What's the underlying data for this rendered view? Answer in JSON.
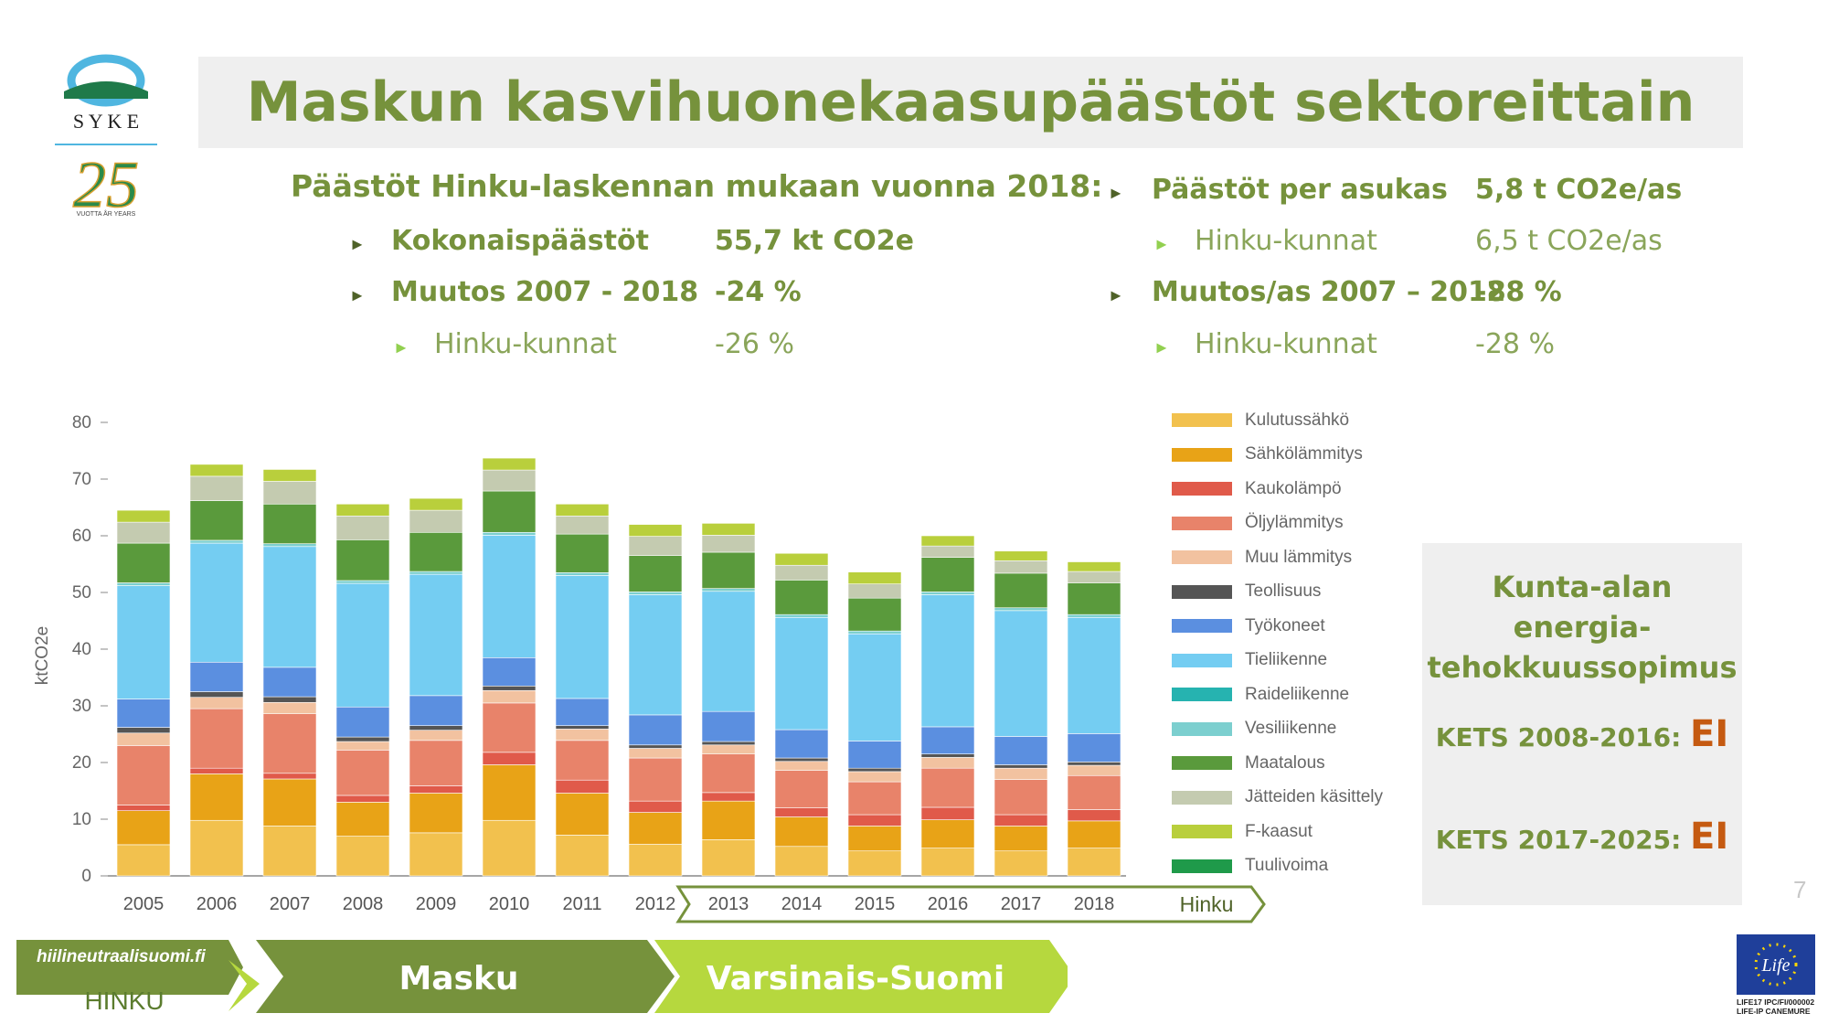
{
  "title": "Maskun kasvihuonekaasupäästöt sektoreittain",
  "logo": {
    "syke_text": "S Y K E",
    "anniversary_number": "25",
    "anniversary_text": "VUOTTA ÅR YEARS"
  },
  "stats_left": {
    "heading": "Päästöt Hinku-laskennan mukaan vuonna 2018:",
    "rows": [
      {
        "label": "Kokonaispäästöt",
        "value": "55,7 kt CO2e"
      },
      {
        "label": "Muutos 2007 - 2018",
        "value": "-24 %"
      },
      {
        "label": "Hinku-kunnat",
        "value": "-26 %"
      }
    ]
  },
  "stats_right": {
    "rows": [
      {
        "label": "Päästöt per asukas",
        "value": "5,8 t CO2e/as"
      },
      {
        "label": "Hinku-kunnat",
        "value": "6,5 t CO2e/as"
      },
      {
        "label": "Muutos/as 2007 – 2018",
        "value": "-28 %"
      },
      {
        "label": "Hinku-kunnat",
        "value": "-28 %"
      }
    ]
  },
  "kets": {
    "heading_line1": "Kunta-alan energia-",
    "heading_line2": "tehokkuussopimus",
    "row1_label": "KETS 2008-2016:",
    "row1_value": "EI",
    "row2_label": "KETS 2017-2025:",
    "row2_value": "EI"
  },
  "footer": {
    "site": "hiilineutraalisuomi.fi",
    "hinku": "HINKU",
    "arrow1": "Masku",
    "arrow2": "Varsinais-Suomi",
    "page_number": "7",
    "eu_text1": "LIFE17 IPC/FI/000002",
    "eu_text2": "LIFE-IP CANEMURE",
    "eu_logo_text": "Life"
  },
  "hinku_bracket_label": "Hinku",
  "colors": {
    "title": "#76923c",
    "ei": "#c55a11",
    "masku_arrow": "#76923c",
    "vs_arrow": "#b6d83e"
  },
  "chart_data": {
    "type": "bar",
    "stacked": true,
    "ylabel": "ktCO2e",
    "ylim": [
      0,
      80
    ],
    "yticks": [
      0,
      10,
      20,
      30,
      40,
      50,
      60,
      70,
      80
    ],
    "grid": false,
    "legend_position": "right",
    "categories": [
      "2005",
      "2006",
      "2007",
      "2008",
      "2009",
      "2010",
      "2011",
      "2012",
      "2013",
      "2014",
      "2015",
      "2016",
      "2017",
      "2018"
    ],
    "series": [
      {
        "name": "Kulutussähkö",
        "color": "#f2c14e",
        "values": [
          5.5,
          9.8,
          8.8,
          7.0,
          7.6,
          9.8,
          7.2,
          5.6,
          6.4,
          5.2,
          4.4,
          4.9,
          4.4,
          4.9
        ]
      },
      {
        "name": "Sähkölämmitys",
        "color": "#e8a317",
        "values": [
          6.0,
          8.2,
          8.3,
          6.0,
          7.0,
          9.8,
          7.4,
          5.6,
          6.8,
          5.2,
          4.4,
          5.0,
          4.4,
          4.8
        ]
      },
      {
        "name": "Kaukolämpö",
        "color": "#e05a4a",
        "values": [
          1.0,
          1.0,
          1.0,
          1.2,
          1.3,
          2.2,
          2.3,
          2.0,
          1.5,
          1.6,
          2.0,
          2.2,
          2.0,
          2.0
        ]
      },
      {
        "name": "Öljylämmitys",
        "color": "#e8836a",
        "values": [
          10.5,
          10.5,
          10.5,
          8.0,
          8.0,
          8.7,
          7.0,
          7.6,
          6.8,
          6.6,
          5.8,
          6.9,
          6.2,
          6.0
        ]
      },
      {
        "name": "Muu lämmitys",
        "color": "#f2c2a0",
        "values": [
          2.2,
          2.0,
          2.0,
          1.5,
          1.8,
          2.2,
          2.0,
          1.7,
          1.6,
          1.6,
          1.8,
          1.9,
          2.0,
          1.8
        ]
      },
      {
        "name": "Teollisuus",
        "color": "#555555",
        "values": [
          1.0,
          1.0,
          1.0,
          0.8,
          0.8,
          0.8,
          0.6,
          0.6,
          0.6,
          0.6,
          0.6,
          0.6,
          0.6,
          0.6
        ]
      },
      {
        "name": "Työkoneet",
        "color": "#5b8fe0",
        "values": [
          5.0,
          5.2,
          5.2,
          5.3,
          5.3,
          5.0,
          4.8,
          5.3,
          5.3,
          5.0,
          4.8,
          4.8,
          5.0,
          5.0
        ]
      },
      {
        "name": "Tieliikenne",
        "color": "#74cdf2",
        "values": [
          20.0,
          21.0,
          21.3,
          21.8,
          21.4,
          21.6,
          21.7,
          21.2,
          21.2,
          19.8,
          18.9,
          23.3,
          22.2,
          20.5
        ]
      },
      {
        "name": "Raideliikenne",
        "color": "#26b3b0",
        "values": [
          0,
          0,
          0,
          0,
          0,
          0,
          0,
          0,
          0,
          0,
          0,
          0,
          0,
          0
        ]
      },
      {
        "name": "Vesiliikenne",
        "color": "#7ccfcf",
        "values": [
          0.5,
          0.5,
          0.5,
          0.5,
          0.5,
          0.5,
          0.5,
          0.5,
          0.5,
          0.5,
          0.5,
          0.5,
          0.5,
          0.5
        ]
      },
      {
        "name": "Maatalous",
        "color": "#5a9a3c",
        "values": [
          7.0,
          7.0,
          7.0,
          7.2,
          6.9,
          7.3,
          6.8,
          6.4,
          6.4,
          6.1,
          5.8,
          6.1,
          6.1,
          5.6
        ]
      },
      {
        "name": "Jätteiden käsittely",
        "color": "#c4cbb0",
        "values": [
          3.7,
          4.3,
          4.0,
          4.2,
          3.9,
          3.7,
          3.2,
          3.4,
          3.0,
          2.6,
          2.5,
          2.0,
          2.2,
          2.0
        ]
      },
      {
        "name": "F-kaasut",
        "color": "#b9cf3c",
        "values": [
          2.1,
          2.1,
          2.1,
          2.1,
          2.1,
          2.1,
          2.1,
          2.1,
          2.1,
          2.1,
          2.1,
          1.8,
          1.7,
          1.7
        ]
      },
      {
        "name": "Tuulivoima",
        "color": "#1f9a4a",
        "values": [
          0,
          0,
          0,
          0,
          0,
          0,
          0,
          0,
          0,
          0,
          0,
          0,
          0,
          0
        ]
      }
    ]
  }
}
